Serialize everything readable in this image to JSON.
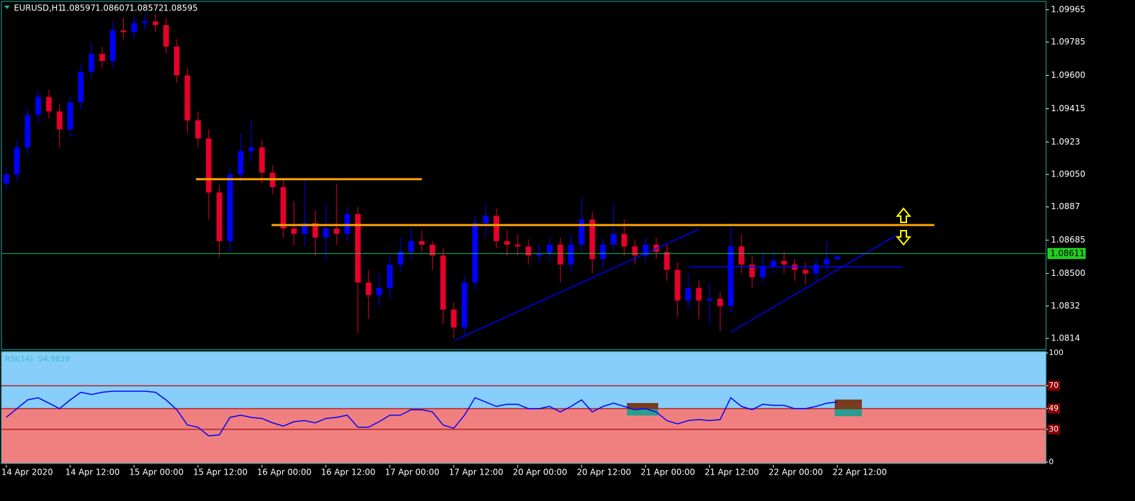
{
  "chart_data": [
    {
      "type": "candlestick",
      "title": "EURUSD,H1",
      "header_values": [
        1.08597,
        1.08607,
        1.08572,
        1.08595
      ],
      "bid": 1.08611,
      "categories": [
        "14 Apr 2020",
        null,
        null,
        null,
        null,
        null,
        "14 Apr 12:00",
        null,
        null,
        null,
        null,
        null,
        "15 Apr 00:00",
        null,
        null,
        null,
        null,
        null,
        "15 Apr 12:00",
        null,
        null,
        null,
        null,
        null,
        "16 Apr 00:00",
        null,
        null,
        null,
        null,
        null,
        "16 Apr 12:00",
        null,
        null,
        null,
        null,
        null,
        "17 Apr 00:00",
        null,
        null,
        null,
        null,
        null,
        "17 Apr 12:00",
        null,
        null,
        null,
        null,
        null,
        "20 Apr 00:00",
        null,
        null,
        null,
        null,
        null,
        "20 Apr 12:00",
        null,
        null,
        null,
        null,
        null,
        "21 Apr 00:00",
        null,
        null,
        null,
        null,
        null,
        "21 Apr 12:00",
        null,
        null,
        null,
        null,
        null,
        "22 Apr 00:00",
        null,
        null,
        null,
        null,
        null,
        "22 Apr 12:00"
      ],
      "open": [
        1.09,
        1.0905,
        1.092,
        1.0938,
        1.0948,
        1.094,
        1.093,
        1.0945,
        1.0962,
        1.0972,
        1.0968,
        1.0985,
        1.0984,
        1.0989,
        1.099,
        1.0988,
        1.0976,
        1.096,
        1.0935,
        1.0925,
        1.0895,
        1.0868,
        1.0905,
        1.0918,
        1.092,
        1.0906,
        1.0898,
        1.0875,
        1.0872,
        1.0878,
        1.087,
        1.0875,
        1.0872,
        1.0883,
        1.0845,
        1.0838,
        1.0842,
        1.0855,
        1.0862,
        1.0868,
        1.0866,
        1.086,
        1.083,
        1.082,
        1.0845,
        1.0878,
        1.0882,
        1.0868,
        1.0866,
        1.0865,
        1.086,
        1.0861,
        1.0866,
        1.0855,
        1.0866,
        1.088,
        1.0858,
        1.0866,
        1.0872,
        1.0865,
        1.086,
        1.0866,
        1.0862,
        1.0852,
        1.0835,
        1.0842,
        1.0835,
        1.0836,
        1.0832,
        1.0865,
        1.0855,
        1.0848,
        1.0854,
        1.0857,
        1.0855,
        1.0852,
        1.085,
        1.0855,
        1.0858
      ],
      "high": [
        1.0909,
        1.0924,
        1.0942,
        1.0952,
        1.0952,
        1.0944,
        1.0949,
        1.0966,
        1.0978,
        1.0976,
        1.099,
        1.0992,
        1.0993,
        1.0994,
        1.0994,
        1.0992,
        1.098,
        1.0964,
        1.094,
        1.093,
        1.0899,
        1.0909,
        1.0928,
        1.0935,
        1.0924,
        1.091,
        1.0902,
        1.089,
        1.0902,
        1.0885,
        1.0888,
        1.09,
        1.0887,
        1.0887,
        1.0852,
        1.085,
        1.086,
        1.087,
        1.0875,
        1.0874,
        1.0868,
        1.0864,
        1.0834,
        1.0849,
        1.0882,
        1.0889,
        1.0886,
        1.0874,
        1.0872,
        1.0869,
        1.0866,
        1.087,
        1.087,
        1.0872,
        1.0892,
        1.0884,
        1.087,
        1.0888,
        1.088,
        1.0869,
        1.087,
        1.087,
        1.0866,
        1.0856,
        1.085,
        1.0846,
        1.0845,
        1.084,
        1.0878,
        1.0872,
        1.086,
        1.0862,
        1.0862,
        1.0862,
        1.0858,
        1.0856,
        1.0859,
        1.0868,
        1.08607
      ],
      "low": [
        1.0896,
        1.0901,
        1.0916,
        1.0934,
        1.0936,
        1.092,
        1.0926,
        1.0941,
        1.0958,
        1.0964,
        1.0964,
        1.098,
        1.098,
        1.0985,
        1.0984,
        1.0972,
        1.0956,
        1.0928,
        1.092,
        1.088,
        1.0859,
        1.0862,
        1.09,
        1.0912,
        1.09,
        1.0894,
        1.087,
        1.0866,
        1.0865,
        1.086,
        1.0858,
        1.0866,
        1.0868,
        1.0817,
        1.0825,
        1.0832,
        1.0836,
        1.0851,
        1.0858,
        1.0862,
        1.0852,
        1.0822,
        1.0814,
        1.0816,
        1.0841,
        1.087,
        1.0864,
        1.086,
        1.086,
        1.0855,
        1.0856,
        1.0857,
        1.0845,
        1.0851,
        1.0862,
        1.085,
        1.0852,
        1.0862,
        1.086,
        1.0855,
        1.0856,
        1.0858,
        1.0846,
        1.0826,
        1.083,
        1.0825,
        1.0822,
        1.0818,
        1.0828,
        1.085,
        1.0842,
        1.0844,
        1.085,
        1.085,
        1.0846,
        1.0844,
        1.0846,
        1.0851,
        1.08572
      ],
      "close": [
        1.0905,
        1.092,
        1.0938,
        1.0948,
        1.094,
        1.093,
        1.0945,
        1.0962,
        1.0972,
        1.0968,
        1.0985,
        1.0984,
        1.0989,
        1.099,
        1.0988,
        1.0976,
        1.096,
        1.0935,
        1.0925,
        1.0895,
        1.0868,
        1.0905,
        1.0918,
        1.092,
        1.0906,
        1.0898,
        1.0875,
        1.0872,
        1.0878,
        1.087,
        1.0875,
        1.0872,
        1.0883,
        1.0845,
        1.0838,
        1.0842,
        1.0855,
        1.0862,
        1.0868,
        1.0866,
        1.086,
        1.083,
        1.082,
        1.0845,
        1.0878,
        1.0882,
        1.0868,
        1.0866,
        1.0865,
        1.086,
        1.0861,
        1.0866,
        1.0855,
        1.0866,
        1.088,
        1.0858,
        1.0866,
        1.0872,
        1.0865,
        1.086,
        1.0866,
        1.0862,
        1.0852,
        1.0835,
        1.0842,
        1.0835,
        1.0836,
        1.0832,
        1.0865,
        1.0855,
        1.0848,
        1.0854,
        1.0857,
        1.0855,
        1.0852,
        1.085,
        1.0855,
        1.0858,
        1.08595
      ],
      "up_color": "#0000ff",
      "down_color": "#e8002a",
      "ylim": [
        1.08078,
        1.10011
      ],
      "yticks": [
        1.0814,
        1.0832,
        {
          "value": 1.085,
          "label": "1.08500"
        },
        1.08685,
        1.0887,
        {
          "value": 1.0905,
          "label": "1.09050"
        },
        1.0923,
        1.09415,
        {
          "value": 1.096,
          "label": "1.09600"
        },
        1.09785,
        1.09965
      ],
      "hlines": [
        {
          "price": 1.09024,
          "from": 17.8,
          "to": 39.0,
          "color": "#ffa500"
        },
        {
          "price": 1.08769,
          "from": 24.9,
          "to": 87.1,
          "color": "#ffa500"
        },
        {
          "price": 1.08538,
          "from": 64.1,
          "to": 84.1,
          "color": "#0000ff"
        }
      ],
      "trendlines": [
        {
          "x": [
            42.1,
            65.0
          ],
          "y": [
            1.08129,
            1.08746
          ],
          "color": "#0000ff"
        },
        {
          "x": [
            68.0,
            83.6
          ],
          "y": [
            1.08175,
            1.08715
          ],
          "color": "#0000ff"
        }
      ]
    },
    {
      "type": "line",
      "title": "RSI(14)",
      "last_value": 54.9839,
      "color": "#0000ff",
      "values": [
        41,
        49,
        57,
        59,
        54,
        49,
        57,
        64,
        62,
        64,
        65,
        65,
        65,
        65,
        64,
        57,
        48,
        34,
        32,
        24,
        25,
        41,
        43,
        41,
        40,
        36,
        33,
        37,
        38,
        36,
        40,
        41,
        43,
        32,
        32,
        37,
        43,
        43,
        48,
        48,
        46,
        34,
        31,
        43,
        59,
        55,
        51,
        53,
        53,
        49,
        49,
        51,
        46,
        51,
        57,
        46,
        51,
        54,
        51,
        48,
        49,
        46,
        38,
        35,
        38,
        39,
        38,
        39,
        59,
        51,
        48,
        53,
        52,
        52,
        49,
        49,
        51,
        54,
        55
      ],
      "ylim": [
        0,
        100
      ],
      "yticks": [
        0,
        30,
        49,
        70,
        100
      ],
      "levels": [
        30,
        49,
        70
      ],
      "upper_fill": "#87cefa",
      "lower_fill": "#f08080",
      "level_color": "#b22222"
    }
  ]
}
